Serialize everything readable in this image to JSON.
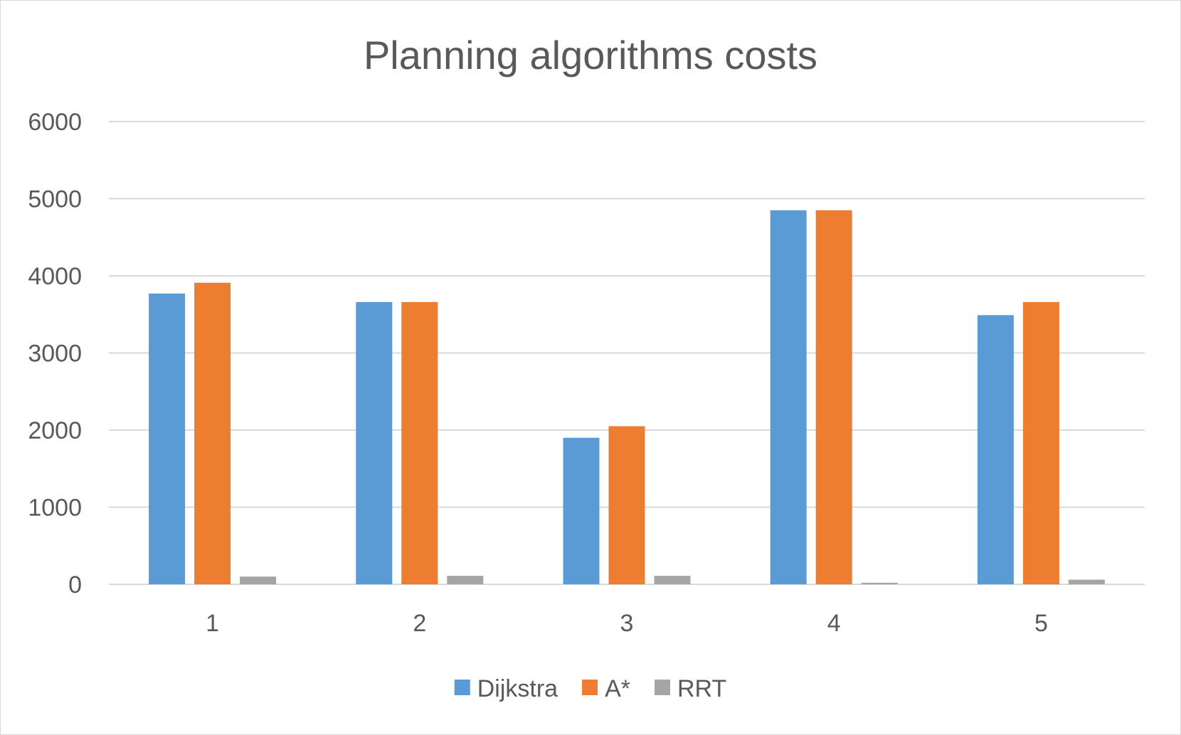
{
  "chart_data": {
    "type": "bar",
    "title": "Planning algorithms costs",
    "xlabel": "",
    "ylabel": "",
    "categories": [
      "1",
      "2",
      "3",
      "4",
      "5"
    ],
    "series": [
      {
        "name": "Dijkstra",
        "values": [
          3770,
          3660,
          1900,
          4850,
          3490
        ]
      },
      {
        "name": "A*",
        "values": [
          3910,
          3660,
          2050,
          4850,
          3660
        ]
      },
      {
        "name": "RRT",
        "values": [
          100,
          110,
          110,
          20,
          60
        ]
      }
    ],
    "ylim": [
      0,
      6000
    ],
    "yticks": [
      "0",
      "1000",
      "2000",
      "3000",
      "4000",
      "5000",
      "6000"
    ],
    "grid": true,
    "legend_position": "bottom"
  },
  "colors": {
    "series": [
      "#5b9bd5",
      "#ed7d31",
      "#a5a5a5"
    ],
    "gridline": "#d9d9d9",
    "text": "#595959"
  }
}
